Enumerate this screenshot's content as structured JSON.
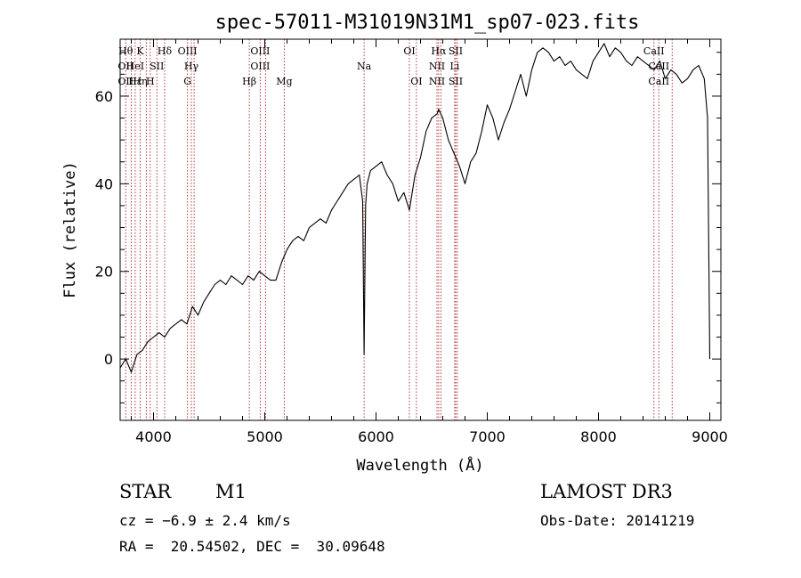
{
  "chart_data": {
    "type": "line",
    "title": "spec-57011-M31019N31M1_sp07-023.fits",
    "xlabel": "Wavelength (Å)",
    "ylabel": "Flux (relative)",
    "xlim": [
      3700,
      9100
    ],
    "ylim": [
      -14,
      73
    ],
    "x_ticks": [
      4000,
      5000,
      6000,
      7000,
      8000,
      9000
    ],
    "x_tick_labels": [
      "4000",
      "5000",
      "6000",
      "7000",
      "8000",
      "9000"
    ],
    "y_ticks": [
      0,
      20,
      40,
      60
    ],
    "y_tick_labels": [
      "0",
      "20",
      "40",
      "60"
    ],
    "grid": false,
    "series": [
      {
        "name": "spectrum",
        "color": "#000000",
        "x": [
          3700,
          3750,
          3800,
          3850,
          3900,
          3950,
          4000,
          4050,
          4100,
          4150,
          4200,
          4250,
          4300,
          4350,
          4400,
          4450,
          4500,
          4550,
          4600,
          4650,
          4700,
          4750,
          4800,
          4850,
          4900,
          4950,
          5000,
          5050,
          5100,
          5150,
          5200,
          5250,
          5300,
          5350,
          5400,
          5450,
          5500,
          5550,
          5600,
          5650,
          5700,
          5750,
          5800,
          5850,
          5880,
          5893,
          5906,
          5920,
          5950,
          6000,
          6050,
          6100,
          6150,
          6200,
          6250,
          6300,
          6350,
          6400,
          6450,
          6500,
          6550,
          6563,
          6600,
          6650,
          6700,
          6750,
          6800,
          6850,
          6900,
          6950,
          7000,
          7050,
          7100,
          7150,
          7200,
          7250,
          7300,
          7350,
          7400,
          7450,
          7500,
          7550,
          7600,
          7650,
          7700,
          7750,
          7800,
          7850,
          7900,
          7950,
          8000,
          8050,
          8100,
          8150,
          8200,
          8250,
          8300,
          8350,
          8400,
          8450,
          8500,
          8550,
          8600,
          8650,
          8700,
          8750,
          8800,
          8850,
          8900,
          8950,
          8980,
          9000
        ],
        "y": [
          -2,
          0,
          -3,
          1,
          2,
          4,
          5,
          6,
          5,
          7,
          8,
          9,
          8,
          12,
          10,
          13,
          15,
          17,
          18,
          17,
          19,
          18,
          17,
          19,
          18,
          20,
          19,
          18,
          18,
          22,
          25,
          27,
          28,
          27,
          30,
          31,
          32,
          31,
          34,
          36,
          38,
          40,
          41,
          42,
          36,
          1,
          35,
          40,
          43,
          44,
          45,
          42,
          40,
          36,
          38,
          34,
          42,
          46,
          52,
          55,
          56,
          57,
          55,
          50,
          47,
          44,
          40,
          45,
          47,
          52,
          58,
          55,
          50,
          54,
          57,
          61,
          65,
          60,
          66,
          70,
          71,
          70,
          68,
          69,
          67,
          68,
          66,
          65,
          64,
          68,
          70,
          72,
          69,
          71,
          70,
          68,
          67,
          69,
          68,
          67,
          66,
          68,
          64,
          66,
          65,
          63,
          64,
          66,
          67,
          64,
          55,
          0
        ]
      }
    ],
    "lines": [
      {
        "x": 3750,
        "labels": [
          "Hθ",
          "OII",
          "OII"
        ]
      },
      {
        "x": 3800,
        "labels": [
          "",
          "",
          ""
        ]
      },
      {
        "x": 3835,
        "labels": [
          "",
          "HeI",
          "Hε"
        ]
      },
      {
        "x": 3880,
        "labels": [
          "K",
          "",
          "Hη"
        ]
      },
      {
        "x": 3935,
        "labels": [
          "",
          "",
          ""
        ]
      },
      {
        "x": 3970,
        "labels": [
          "",
          "",
          "H"
        ]
      },
      {
        "x": 4030,
        "labels": [
          "",
          "SII",
          ""
        ]
      },
      {
        "x": 4100,
        "labels": [
          "Hδ",
          "",
          ""
        ]
      },
      {
        "x": 4305,
        "labels": [
          "OIII",
          "",
          "G"
        ]
      },
      {
        "x": 4340,
        "labels": [
          "",
          "Hγ",
          ""
        ]
      },
      {
        "x": 4365,
        "labels": [
          "",
          "",
          ""
        ]
      },
      {
        "x": 4861,
        "labels": [
          "",
          "",
          "Hβ"
        ]
      },
      {
        "x": 4959,
        "labels": [
          "OIII",
          "OIII",
          ""
        ]
      },
      {
        "x": 5007,
        "labels": [
          "",
          "",
          ""
        ]
      },
      {
        "x": 5175,
        "labels": [
          "",
          "",
          "Mg"
        ]
      },
      {
        "x": 5893,
        "labels": [
          "",
          "Na",
          ""
        ]
      },
      {
        "x": 6300,
        "labels": [
          "OI",
          "",
          ""
        ]
      },
      {
        "x": 6363,
        "labels": [
          "",
          "",
          "OI"
        ]
      },
      {
        "x": 6548,
        "labels": [
          "",
          "NII",
          "NII"
        ]
      },
      {
        "x": 6563,
        "labels": [
          "Hα",
          "",
          ""
        ]
      },
      {
        "x": 6583,
        "labels": [
          "",
          "",
          ""
        ]
      },
      {
        "x": 6707,
        "labels": [
          "",
          "Li",
          ""
        ]
      },
      {
        "x": 6716,
        "labels": [
          "SII",
          "",
          "SII"
        ]
      },
      {
        "x": 6731,
        "labels": [
          "",
          "",
          ""
        ]
      },
      {
        "x": 8498,
        "labels": [
          "CaII",
          "",
          ""
        ]
      },
      {
        "x": 8542,
        "labels": [
          "",
          "CaII",
          "CaII"
        ]
      },
      {
        "x": 8662,
        "labels": [
          "",
          "",
          ""
        ]
      }
    ]
  },
  "info": {
    "object_class": "STAR",
    "subclass": "M1",
    "survey": "LAMOST DR3",
    "cz": "cz = −6.9 ± 2.4 km/s",
    "obs_date": "Obs-Date: 20141219",
    "coords": "RA =  20.54502, DEC =  30.09648"
  }
}
